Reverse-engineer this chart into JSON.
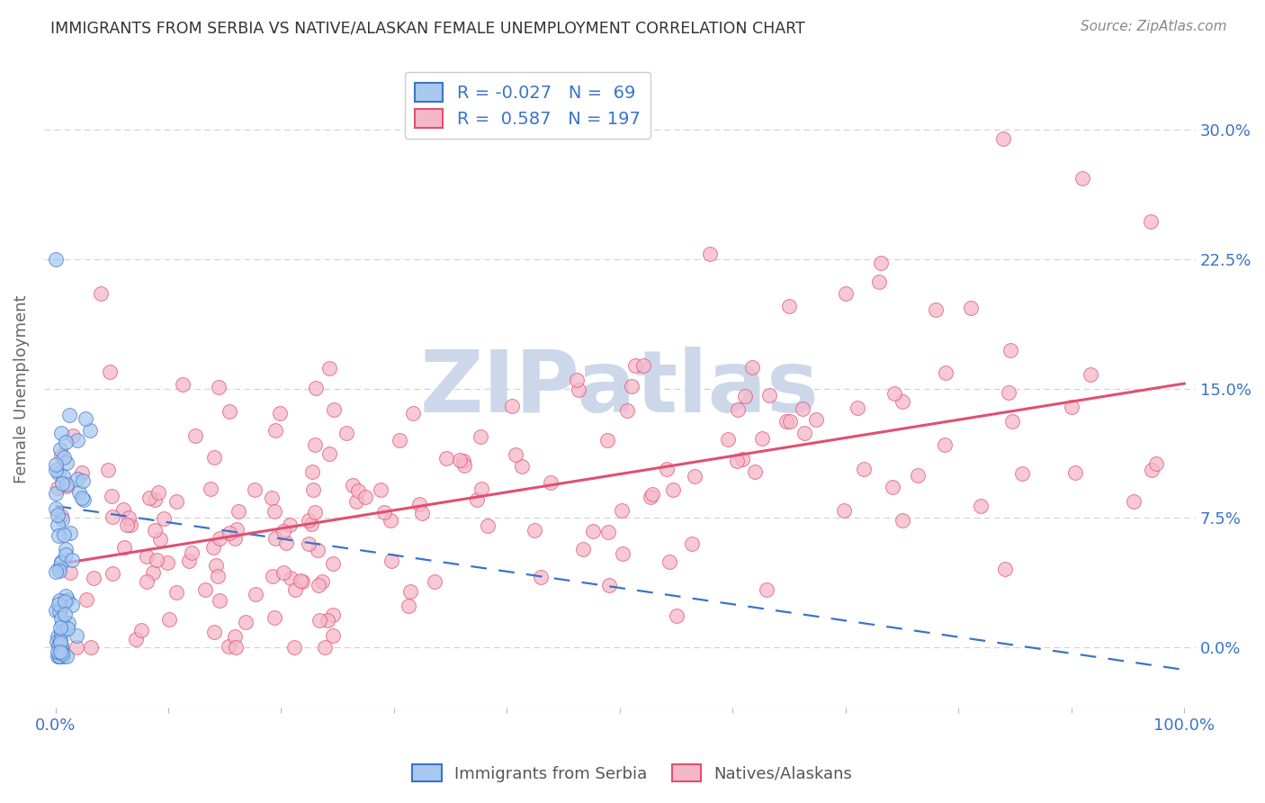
{
  "title": "IMMIGRANTS FROM SERBIA VS NATIVE/ALASKAN FEMALE UNEMPLOYMENT CORRELATION CHART",
  "source": "Source: ZipAtlas.com",
  "ylabel": "Female Unemployment",
  "xlim": [
    -0.01,
    1.01
  ],
  "ylim": [
    -0.035,
    0.335
  ],
  "yticks": [
    0.0,
    0.075,
    0.15,
    0.225,
    0.3
  ],
  "yticklabels_right": [
    "0.0%",
    "7.5%",
    "15.0%",
    "22.5%",
    "30.0%"
  ],
  "xticklabels_edge": [
    "0.0%",
    "100.0%"
  ],
  "legend_label1": "Immigrants from Serbia",
  "legend_label2": "Natives/Alaskans",
  "color_blue": "#a8c8f0",
  "color_pink": "#f5b8ca",
  "color_blue_line": "#3a74c8",
  "color_pink_line": "#e05070",
  "watermark": "ZIPatlas",
  "watermark_color": "#ccd8ea",
  "background_color": "#ffffff",
  "grid_color": "#cccccc",
  "title_color": "#333333",
  "axis_label_color": "#666666",
  "tick_color": "#3a74c8",
  "serbia_R": -0.027,
  "serbia_N": 69,
  "native_R": 0.587,
  "native_N": 197,
  "serbia_intercept": 0.082,
  "serbia_slope": -0.095,
  "native_intercept": 0.048,
  "native_slope": 0.105
}
